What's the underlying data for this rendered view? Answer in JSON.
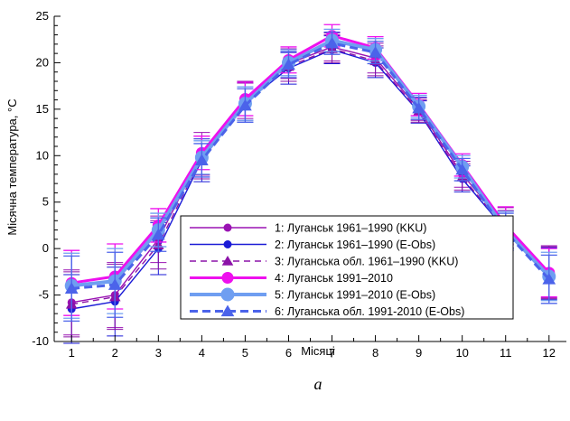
{
  "chart_data": {
    "type": "line",
    "xlabel": "Місяці",
    "ylabel": "Місячна температура, °С",
    "panel_label": "а",
    "xlim": [
      0.6,
      12.4
    ],
    "ylim": [
      -10,
      25
    ],
    "x_ticks": [
      1,
      2,
      3,
      4,
      5,
      6,
      7,
      8,
      9,
      10,
      11,
      12
    ],
    "y_ticks": [
      -10,
      -5,
      0,
      5,
      10,
      15,
      20,
      25
    ],
    "x": [
      1,
      2,
      3,
      4,
      5,
      6,
      7,
      8,
      9,
      10,
      11,
      12
    ],
    "grid": false,
    "legend_position": "bottom-right",
    "series": [
      {
        "name": "1: Луганськ 1961–1990 (KKU)",
        "color": "#9a13b3",
        "style": "solid",
        "width": 1.4,
        "marker": "circle",
        "marker_size": 4.5,
        "values": [
          -5.8,
          -5.0,
          1.0,
          10.2,
          16.0,
          19.9,
          21.7,
          20.5,
          15.0,
          8.0,
          2.4,
          -2.5
        ],
        "errors": [
          3.5,
          3.5,
          2.5,
          2.3,
          2.0,
          1.6,
          1.5,
          1.6,
          1.2,
          1.4,
          2.0,
          2.8
        ]
      },
      {
        "name": "2: Луганськ 1961–1990 (E-Obs)",
        "color": "#1a1ad6",
        "style": "solid",
        "width": 1.4,
        "marker": "circle",
        "marker_size": 4.5,
        "values": [
          -6.5,
          -5.7,
          0.0,
          9.5,
          15.7,
          19.4,
          21.4,
          20.0,
          14.7,
          7.5,
          2.0,
          -2.7
        ],
        "errors": [
          3.7,
          3.7,
          2.8,
          2.3,
          2.1,
          1.7,
          1.5,
          1.6,
          1.2,
          1.4,
          2.0,
          2.8
        ]
      },
      {
        "name": "3: Луганська обл. 1961–1990 (KKU)",
        "color": "#8c12a8",
        "style": "dashed",
        "width": 1.4,
        "marker": "triangle",
        "marker_size": 6,
        "values": [
          -6.0,
          -5.2,
          0.4,
          9.8,
          15.8,
          19.6,
          21.5,
          20.2,
          14.8,
          7.7,
          2.1,
          -2.6
        ],
        "errors": [
          3.5,
          3.5,
          2.6,
          2.3,
          2.0,
          1.6,
          1.5,
          1.6,
          1.2,
          1.4,
          2.0,
          2.8
        ]
      },
      {
        "name": "4: Луганськ 1991–2010",
        "color": "#ee10ee",
        "style": "solid",
        "width": 3,
        "marker": "circle",
        "marker_size": 6.5,
        "values": [
          -3.7,
          -3.0,
          2.5,
          10.3,
          16.1,
          20.3,
          22.9,
          21.6,
          15.5,
          9.0,
          2.5,
          -2.6
        ],
        "errors": [
          3.5,
          3.5,
          1.8,
          1.8,
          1.8,
          1.4,
          1.2,
          1.2,
          1.2,
          1.2,
          2.0,
          2.6
        ]
      },
      {
        "name": "5: Луганськ 1991–2010 (E-Obs)",
        "color": "#6f9ef1",
        "style": "solid",
        "width": 4,
        "marker": "circle",
        "marker_size": 7.5,
        "values": [
          -4.0,
          -3.5,
          2.0,
          9.8,
          15.6,
          20.0,
          22.4,
          21.4,
          15.3,
          8.8,
          2.0,
          -3.0
        ],
        "errors": [
          3.5,
          3.5,
          1.8,
          1.8,
          1.8,
          1.4,
          1.2,
          1.2,
          1.2,
          1.2,
          2.0,
          2.6
        ]
      },
      {
        "name": "6: Луганська обл. 1991-2010 (E-Obs)",
        "color": "#4b63ea",
        "style": "dashed",
        "width": 3,
        "marker": "triangle",
        "marker_size": 7,
        "values": [
          -4.3,
          -3.9,
          1.5,
          9.5,
          15.4,
          19.8,
          22.1,
          21.1,
          15.1,
          8.5,
          1.8,
          -3.3
        ],
        "errors": [
          3.5,
          3.5,
          1.8,
          1.8,
          1.8,
          1.4,
          1.2,
          1.2,
          1.2,
          1.2,
          2.0,
          2.6
        ]
      }
    ]
  }
}
